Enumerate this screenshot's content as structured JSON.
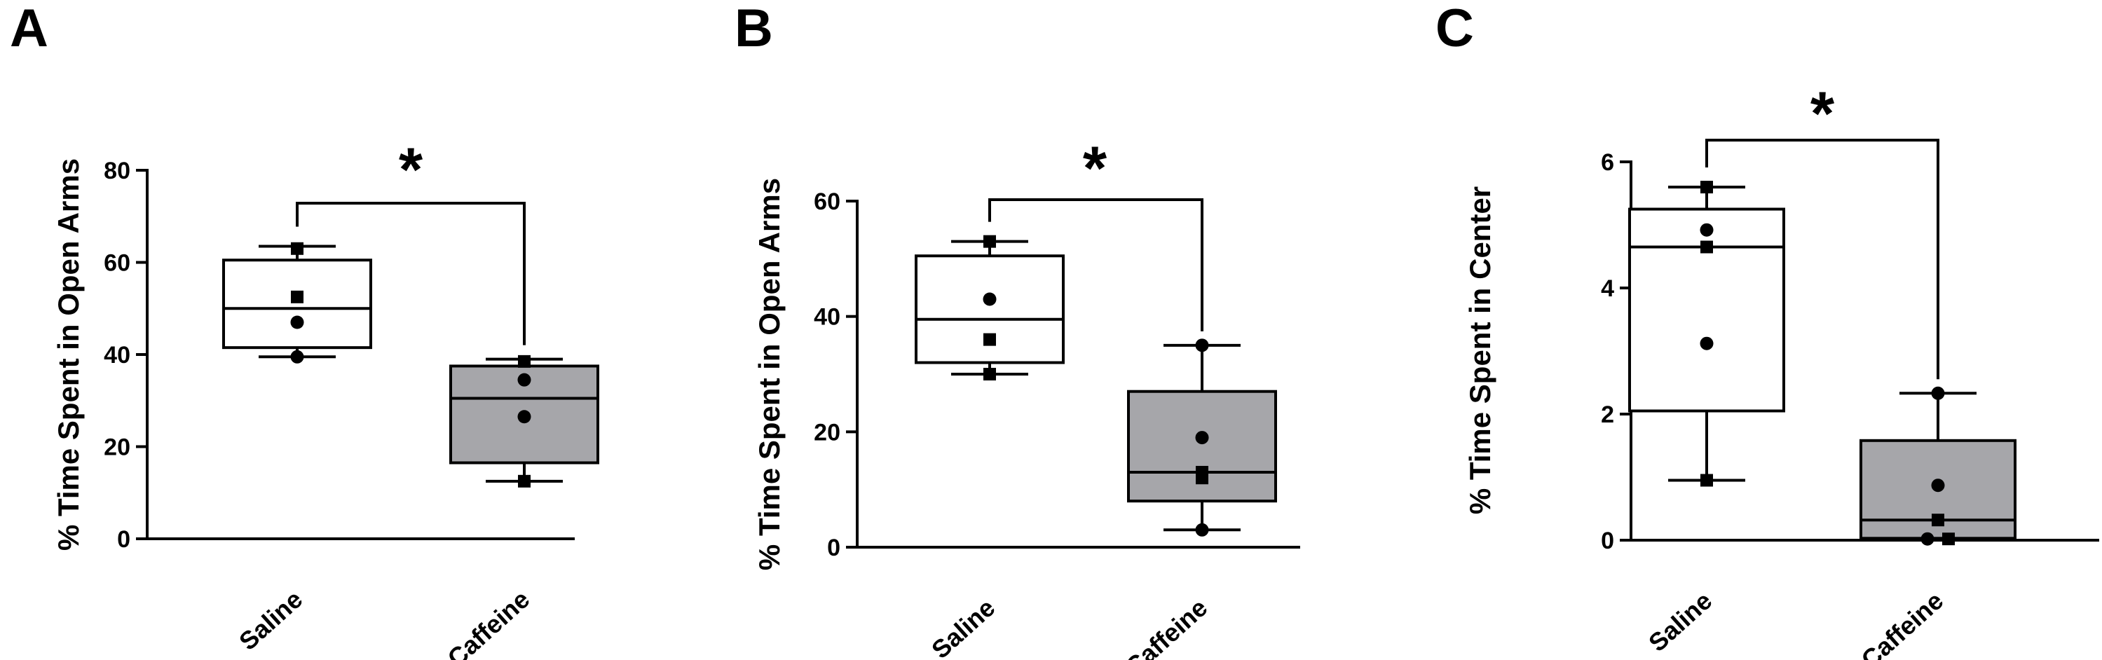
{
  "chart_data": [
    {
      "type": "box",
      "panel": "A",
      "ylabel": "% Time Spent in Open Arms",
      "ylim": [
        0,
        80
      ],
      "yticks": [
        0,
        20,
        40,
        60,
        80
      ],
      "categories": [
        "Saline",
        "Caffeine"
      ],
      "groups": [
        {
          "name": "Saline",
          "fill": "#ffffff",
          "min": 39.5,
          "q1": 41.5,
          "median": 50,
          "q3": 60.5,
          "max": 63.5,
          "points": [
            {
              "v": 63,
              "m": "square"
            },
            {
              "v": 52.5,
              "m": "square"
            },
            {
              "v": 47,
              "m": "circle"
            },
            {
              "v": 39.5,
              "m": "circle"
            }
          ]
        },
        {
          "name": "Caffeine",
          "fill": "#a6a6aa",
          "min": 12.5,
          "q1": 16.5,
          "median": 30.5,
          "q3": 37.5,
          "max": 39,
          "points": [
            {
              "v": 38.5,
              "m": "square"
            },
            {
              "v": 34.5,
              "m": "circle"
            },
            {
              "v": 26.5,
              "m": "circle"
            },
            {
              "v": 12.5,
              "m": "square"
            }
          ]
        }
      ],
      "significance": "*"
    },
    {
      "type": "box",
      "panel": "B",
      "ylabel": "% Time Spent in Open Arms",
      "ylim": [
        0,
        60
      ],
      "yticks": [
        0,
        20,
        40,
        60
      ],
      "categories": [
        "Saline",
        "Caffeine"
      ],
      "groups": [
        {
          "name": "Saline",
          "fill": "#ffffff",
          "min": 30,
          "q1": 32,
          "median": 39.5,
          "q3": 50.5,
          "max": 53,
          "points": [
            {
              "v": 53,
              "m": "square"
            },
            {
              "v": 43,
              "m": "circle"
            },
            {
              "v": 36,
              "m": "square"
            },
            {
              "v": 30,
              "m": "square"
            }
          ]
        },
        {
          "name": "Caffeine",
          "fill": "#a6a6aa",
          "min": 3,
          "q1": 8,
          "median": 13,
          "q3": 27,
          "max": 35,
          "points": [
            {
              "v": 35,
              "m": "circle"
            },
            {
              "v": 19,
              "m": "circle"
            },
            {
              "v": 13,
              "m": "square"
            },
            {
              "v": 12,
              "m": "square"
            },
            {
              "v": 3,
              "m": "circle"
            }
          ]
        }
      ],
      "significance": "*"
    },
    {
      "type": "box",
      "panel": "C",
      "ylabel": "% Time Spent in Center",
      "ylim": [
        0,
        6
      ],
      "yticks": [
        0,
        2,
        4,
        6
      ],
      "categories": [
        "Saline",
        "Caffeine"
      ],
      "groups": [
        {
          "name": "Saline",
          "fill": "#ffffff",
          "min": 0.95,
          "q1": 2.05,
          "median": 4.65,
          "q3": 5.25,
          "max": 5.6,
          "points": [
            {
              "v": 5.6,
              "m": "square"
            },
            {
              "v": 4.92,
              "m": "circle"
            },
            {
              "v": 4.65,
              "m": "square"
            },
            {
              "v": 3.12,
              "m": "circle"
            },
            {
              "v": 0.95,
              "m": "square"
            }
          ]
        },
        {
          "name": "Caffeine",
          "fill": "#a6a6aa",
          "min": 0,
          "q1": 0.03,
          "median": 0.32,
          "q3": 1.58,
          "max": 2.33,
          "points": [
            {
              "v": 2.33,
              "m": "circle"
            },
            {
              "v": 0.87,
              "m": "circle"
            },
            {
              "v": 0.32,
              "m": "square"
            },
            {
              "v": 0.02,
              "m": "square"
            },
            {
              "v": 0.02,
              "m": "circle"
            }
          ]
        }
      ],
      "significance": "*"
    }
  ]
}
